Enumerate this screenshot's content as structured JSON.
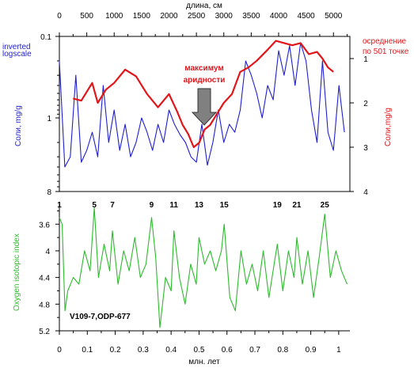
{
  "chart_data": [
    {
      "type": "line",
      "top_axis": {
        "label": "длина, см",
        "ticks": [
          0,
          500,
          1000,
          1500,
          2000,
          2500,
          3000,
          3500,
          4000,
          4500,
          5000
        ],
        "range": [
          0,
          5300
        ]
      },
      "left_axis": {
        "label": "Соли, mg/g",
        "scale": "log, inverted",
        "note_line1": "inverted",
        "note_line2": "logscale",
        "tick_labels": [
          "0.1",
          "1",
          "8"
        ],
        "tick_values": [
          0.1,
          1,
          8
        ],
        "range": [
          0.1,
          8
        ]
      },
      "right_axis": {
        "label": "Соли,mg/g",
        "legend_line1": "осреднение",
        "legend_line2": "по 501 точке",
        "tick_labels": [
          "1",
          "2",
          "3",
          "4"
        ],
        "range": [
          0.5,
          4
        ]
      },
      "annotation_line1": "максимум",
      "annotation_line2": "аридности",
      "colors": {
        "raw": "#1f1fd0",
        "smoothed": "#e0161b",
        "arrow": "#808080"
      },
      "series": [
        {
          "color": "blue",
          "x": [
            0,
            100,
            200,
            300,
            400,
            500,
            600,
            700,
            800,
            900,
            1000,
            1100,
            1200,
            1300,
            1400,
            1500,
            1600,
            1700,
            1800,
            1900,
            2000,
            2100,
            2200,
            2300,
            2400,
            2500,
            2600,
            2700,
            2800,
            2900,
            3000,
            3100,
            3200,
            3300,
            3400,
            3500,
            3600,
            3700,
            3800,
            3900,
            4000,
            4100,
            4200,
            4300,
            4400,
            4500,
            4600,
            4700,
            4800,
            4900,
            5000,
            5100,
            5200
          ],
          "y": [
            0.2,
            4,
            3,
            0.3,
            3.5,
            2.5,
            1.5,
            3,
            0.4,
            2,
            0.8,
            2.5,
            1.2,
            3,
            2,
            1,
            1.5,
            2.5,
            1.2,
            2,
            0.8,
            1.2,
            1.6,
            2,
            3,
            3.5,
            1.2,
            3.8,
            2,
            0.8,
            2,
            1.2,
            1.5,
            0.8,
            0.2,
            0.3,
            0.5,
            1,
            0.4,
            0.6,
            0.15,
            0.3,
            0.13,
            0.4,
            0.12,
            0.2,
            0.8,
            2,
            0.2,
            1.5,
            2.5,
            0.4,
            1.5
          ]
        },
        {
          "color": "red",
          "x": [
            250,
            400,
            600,
            700,
            850,
            1000,
            1200,
            1400,
            1600,
            1800,
            2000,
            2150,
            2250,
            2350,
            2450,
            2550,
            2650,
            2750,
            2850,
            3000,
            3150,
            3300,
            3450,
            3600,
            3800,
            3950,
            4100,
            4250,
            4400,
            4550,
            4700,
            4800,
            4900,
            5000
          ],
          "y": [
            1.9,
            1.95,
            1.55,
            2.0,
            1.7,
            1.55,
            1.25,
            1.4,
            1.8,
            2.1,
            1.8,
            2.2,
            2.5,
            2.7,
            3.0,
            2.9,
            2.6,
            2.5,
            2.3,
            2.0,
            1.8,
            1.3,
            1.2,
            1.05,
            0.8,
            0.6,
            0.65,
            0.7,
            0.65,
            0.9,
            0.85,
            1.0,
            1.2,
            1.3
          ]
        }
      ]
    },
    {
      "type": "line",
      "stages": [
        "1",
        "5",
        "7",
        "9",
        "11",
        "13",
        "15",
        "19",
        "21",
        "25"
      ],
      "stage_ages": [
        0.0,
        0.125,
        0.19,
        0.33,
        0.41,
        0.5,
        0.59,
        0.78,
        0.85,
        0.95
      ],
      "core_label": "V109-7,ODP-677",
      "ylabel": "Oxygen isotopic index",
      "y_tick_labels": [
        "3.6",
        "4",
        "4.4",
        "4.8",
        "5.2"
      ],
      "y_ticks": [
        3.6,
        4.0,
        4.4,
        4.8,
        5.2
      ],
      "ylim": [
        3.3,
        5.2
      ],
      "xlabel": "млн. лет",
      "x_tick_labels": [
        "0",
        "0.1",
        "0.2",
        "0.3",
        "0.4",
        "0.5",
        "0.6",
        "0.7",
        "0.8",
        "0.9",
        "1"
      ],
      "x_ticks": [
        0,
        0.1,
        0.2,
        0.3,
        0.4,
        0.5,
        0.6,
        0.7,
        0.8,
        0.9,
        1.0
      ],
      "xlim": [
        0,
        1.04
      ],
      "color": "#2cbb2c",
      "x": [
        0.0,
        0.01,
        0.02,
        0.03,
        0.05,
        0.07,
        0.09,
        0.11,
        0.125,
        0.14,
        0.16,
        0.18,
        0.19,
        0.21,
        0.23,
        0.25,
        0.27,
        0.29,
        0.31,
        0.33,
        0.345,
        0.36,
        0.38,
        0.4,
        0.41,
        0.43,
        0.45,
        0.47,
        0.49,
        0.5,
        0.52,
        0.54,
        0.56,
        0.58,
        0.59,
        0.61,
        0.63,
        0.65,
        0.67,
        0.69,
        0.71,
        0.73,
        0.75,
        0.78,
        0.8,
        0.82,
        0.84,
        0.85,
        0.87,
        0.89,
        0.91,
        0.93,
        0.95,
        0.97,
        0.99,
        1.01,
        1.03
      ],
      "y": [
        3.5,
        3.6,
        4.9,
        4.6,
        4.4,
        4.5,
        4.0,
        4.3,
        3.35,
        4.4,
        3.9,
        4.3,
        3.7,
        4.5,
        4.0,
        4.3,
        3.8,
        4.4,
        4.2,
        3.5,
        4.1,
        5.15,
        4.4,
        4.6,
        3.7,
        4.4,
        4.8,
        4.2,
        4.5,
        3.8,
        4.2,
        4.0,
        4.3,
        4.0,
        3.6,
        4.7,
        4.9,
        4.0,
        4.5,
        4.2,
        4.6,
        4.0,
        4.7,
        3.9,
        4.6,
        4.0,
        4.4,
        3.8,
        4.5,
        4.0,
        4.7,
        4.1,
        3.45,
        4.4,
        4.0,
        4.3,
        4.5
      ]
    }
  ]
}
